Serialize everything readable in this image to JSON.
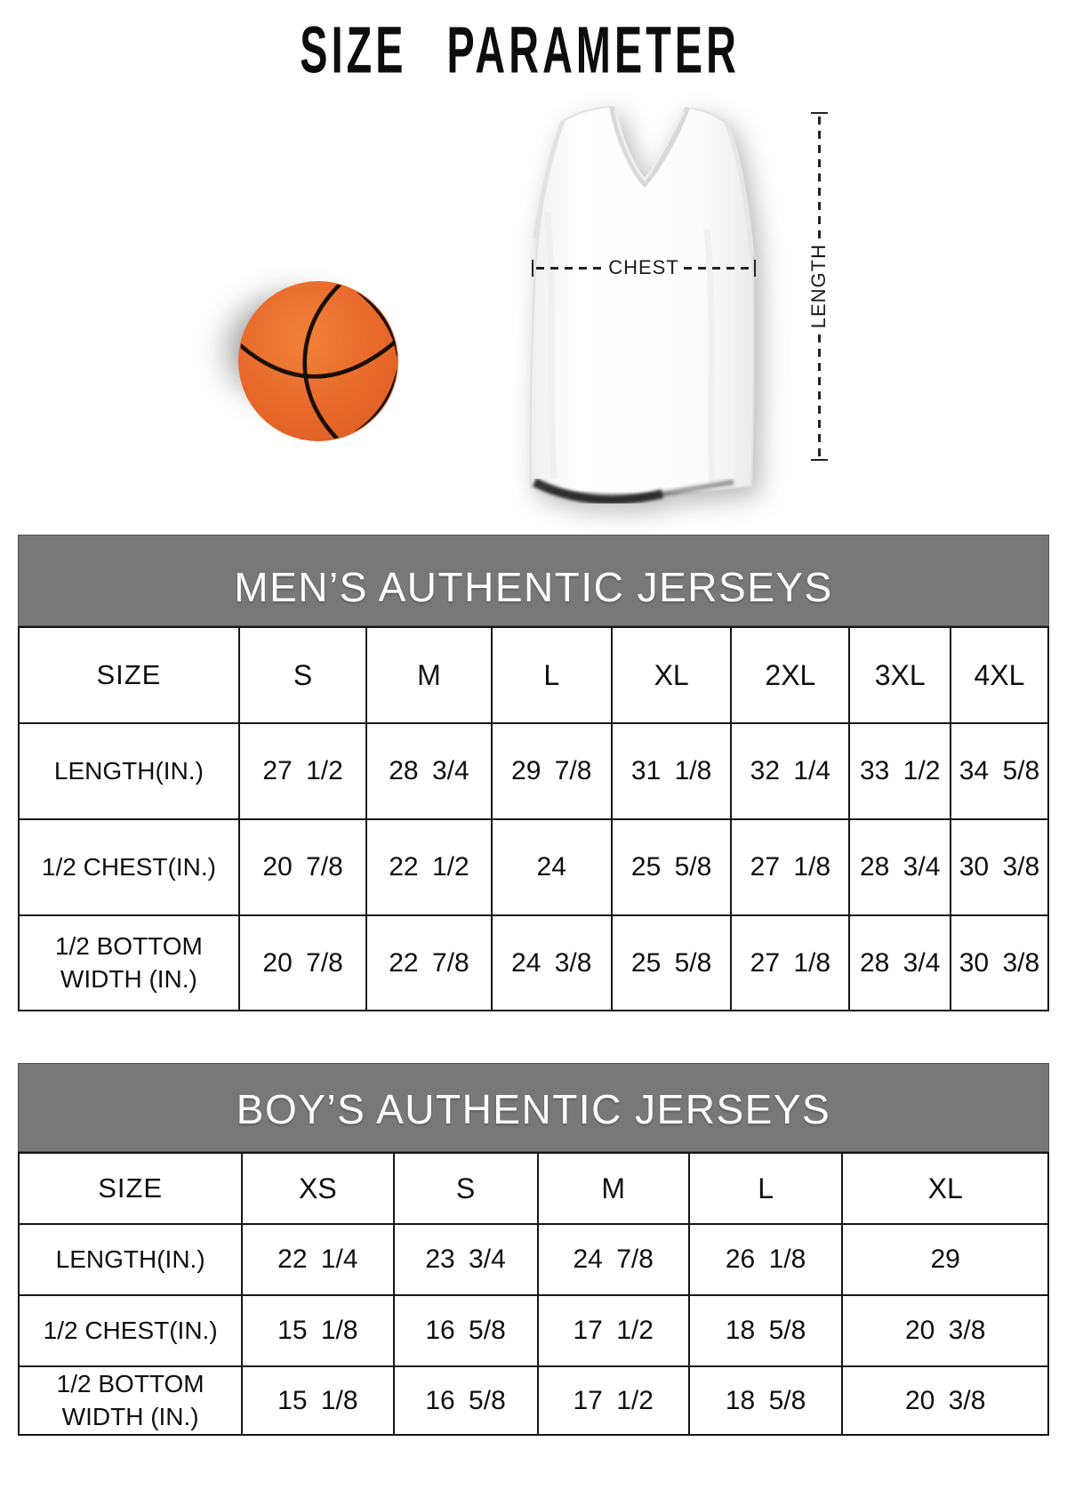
{
  "title": "SIZE PARAMETER",
  "figure": {
    "chest_label": "CHEST",
    "length_label": "LENGTH"
  },
  "colors": {
    "band_bg": "#787878",
    "band_text": "#ffffff",
    "table_border": "#161616",
    "title_text": "#0d0d0d",
    "ball_orange": "#e8682a"
  },
  "tables": [
    {
      "header": "MEN’S AUTHENTIC JERSEYS",
      "size_label": "SIZE",
      "columns": [
        "S",
        "M",
        "L",
        "XL",
        "2XL",
        "3XL",
        "4XL"
      ],
      "rows": [
        {
          "label": "LENGTH(IN.)",
          "values": [
            "27 1/2",
            "28 3/4",
            "29 7/8",
            "31 1/8",
            "32 1/4",
            "33 1/2",
            "34 5/8"
          ]
        },
        {
          "label": "1/2 CHEST(IN.)",
          "values": [
            "20 7/8",
            "22 1/2",
            "24",
            "25 5/8",
            "27 1/8",
            "28 3/4",
            "30 3/8"
          ]
        },
        {
          "label": "1/2 BOTTOM\nWIDTH  (IN.)",
          "values": [
            "20 7/8",
            "22 7/8",
            "24 3/8",
            "25 5/8",
            "27 1/8",
            "28 3/4",
            "30 3/8"
          ]
        }
      ]
    },
    {
      "header": "BOY’S AUTHENTIC JERSEYS",
      "size_label": "SIZE",
      "columns": [
        "XS",
        "S",
        "M",
        "L",
        "XL"
      ],
      "rows": [
        {
          "label": "LENGTH(IN.)",
          "values": [
            "22 1/4",
            "23 3/4",
            "24 7/8",
            "26 1/8",
            "29"
          ]
        },
        {
          "label": "1/2 CHEST(IN.)",
          "values": [
            "15 1/8",
            "16 5/8",
            "17 1/2",
            "18 5/8",
            "20 3/8"
          ]
        },
        {
          "label": "1/2 BOTTOM\nWIDTH  (IN.)",
          "values": [
            "15 1/8",
            "16 5/8",
            "17 1/2",
            "18 5/8",
            "20 3/8"
          ]
        }
      ]
    }
  ]
}
